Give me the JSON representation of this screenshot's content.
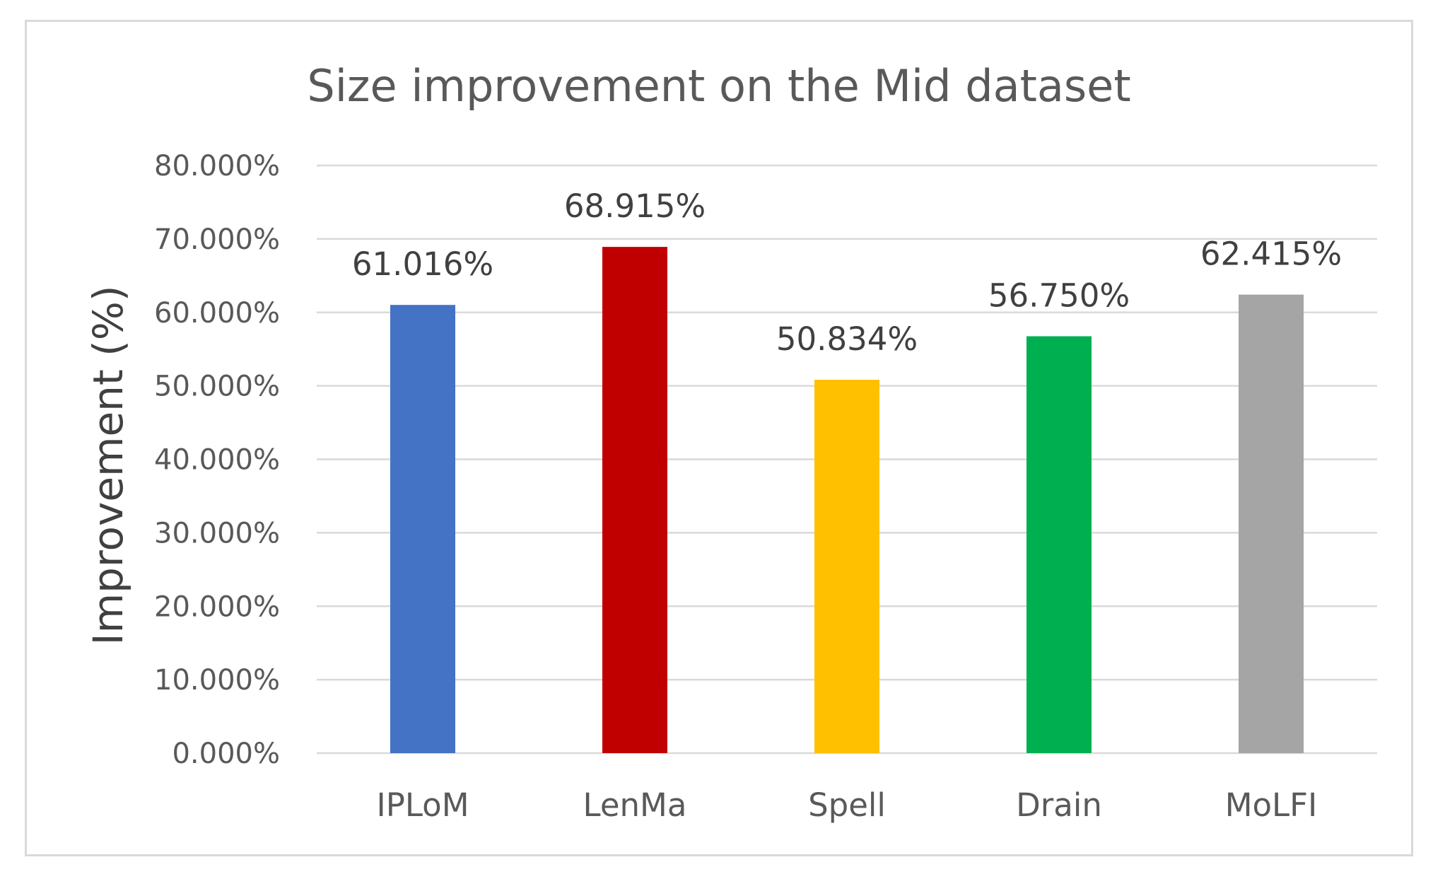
{
  "chart_data": {
    "type": "bar",
    "title": "Size improvement on the Mid dataset",
    "xlabel": "",
    "ylabel": "Improvement (%)",
    "categories": [
      "IPLoM",
      "LenMa",
      "Spell",
      "Drain",
      "MoLFI"
    ],
    "values": [
      61.016,
      68.915,
      50.834,
      56.75,
      62.415
    ],
    "value_labels": [
      "61.016%",
      "68.915%",
      "50.834%",
      "56.750%",
      "62.415%"
    ],
    "colors": [
      "#4472c4",
      "#c00000",
      "#ffc000",
      "#00b050",
      "#a5a5a5"
    ],
    "ylim": [
      0,
      80
    ],
    "yticks": [
      0,
      10,
      20,
      30,
      40,
      50,
      60,
      70,
      80
    ],
    "ytick_labels": [
      "0.000%",
      "10.000%",
      "20.000%",
      "30.000%",
      "40.000%",
      "50.000%",
      "60.000%",
      "70.000%",
      "80.000%"
    ],
    "grid": true,
    "legend": "none"
  }
}
